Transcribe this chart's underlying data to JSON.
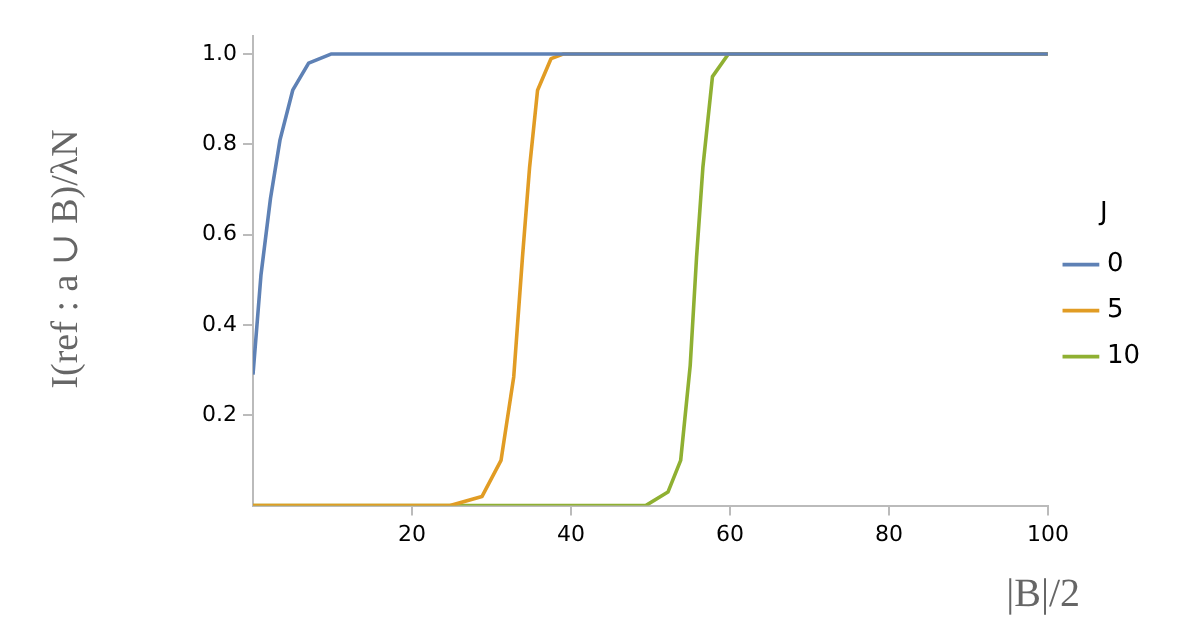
{
  "chart_data": {
    "type": "line",
    "xlabel": "|B|/2",
    "ylabel": "I(ref : a ∪ B)/λN",
    "legend_title": "J",
    "xlim": [
      0,
      100
    ],
    "ylim": [
      0,
      1.04
    ],
    "xticks": [
      20,
      40,
      60,
      80,
      100
    ],
    "yticks": [
      0.2,
      0.4,
      0.6,
      0.8,
      {
        "value": 1,
        "label": "1.0"
      }
    ],
    "grid": false,
    "legend": "right",
    "marker": "none",
    "line_style": "solid",
    "series": [
      {
        "name": "0",
        "color": "#5e81b5",
        "x": [
          0,
          1,
          2.2,
          3.4,
          5,
          7,
          9.8,
          100
        ],
        "values": [
          0.29,
          0.51,
          0.68,
          0.81,
          0.92,
          0.98,
          1.0,
          1.0
        ]
      },
      {
        "name": "5",
        "color": "#e19c24",
        "x": [
          0,
          24.8,
          28.8,
          31.2,
          32.8,
          33.9,
          34.8,
          35.8,
          37.5,
          39,
          100
        ],
        "values": [
          0,
          0,
          0.02,
          0.1,
          0.285,
          0.55,
          0.75,
          0.92,
          0.99,
          1.0,
          1.0
        ]
      },
      {
        "name": "10",
        "color": "#8fb032",
        "x": [
          0,
          49.4,
          52.2,
          53.8,
          55,
          55.8,
          56.6,
          57.8,
          59.8,
          100
        ],
        "values": [
          0,
          0,
          0.03,
          0.1,
          0.31,
          0.55,
          0.75,
          0.95,
          1.0,
          1.0
        ]
      }
    ]
  }
}
